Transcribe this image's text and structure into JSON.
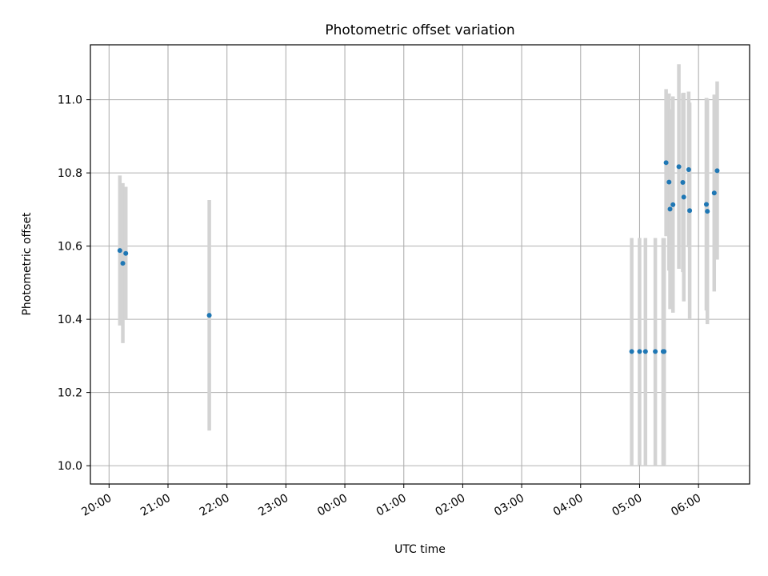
{
  "chart_data": {
    "type": "scatter",
    "title": "Photometric offset variation",
    "xlabel": "UTC time",
    "ylabel": "Photometric offset",
    "x_tick_labels": [
      "20:00",
      "21:00",
      "22:00",
      "23:00",
      "00:00",
      "01:00",
      "02:00",
      "03:00",
      "04:00",
      "05:00",
      "06:00"
    ],
    "y_ticks": [
      10.0,
      10.2,
      10.4,
      10.6,
      10.8,
      11.0
    ],
    "y_tick_labels": [
      "10.0",
      "10.2",
      "10.4",
      "10.6",
      "10.8",
      "11.0"
    ],
    "xlim": [
      "19:41",
      "06:52"
    ],
    "ylim": [
      9.95,
      11.15
    ],
    "grid": true,
    "point_color": "#1f77b4",
    "errorbar_color": "#d3d3d3",
    "series": [
      {
        "points": [
          {
            "x": "20:11",
            "y": 10.588,
            "ylow": 10.383,
            "yhigh": 10.793
          },
          {
            "x": "20:14",
            "y": 10.553,
            "ylow": 10.335,
            "yhigh": 10.772
          },
          {
            "x": "20:17",
            "y": 10.58,
            "ylow": 10.398,
            "yhigh": 10.762
          },
          {
            "x": "21:42",
            "y": 10.411,
            "ylow": 10.096,
            "yhigh": 10.726
          },
          {
            "x": "04:52",
            "y": 10.312,
            "ylow": 10.002,
            "yhigh": 10.622
          },
          {
            "x": "05:00",
            "y": 10.312,
            "ylow": 10.002,
            "yhigh": 10.622
          },
          {
            "x": "05:06",
            "y": 10.312,
            "ylow": 10.002,
            "yhigh": 10.622
          },
          {
            "x": "05:16",
            "y": 10.312,
            "ylow": 10.002,
            "yhigh": 10.622
          },
          {
            "x": "05:24",
            "y": 10.312,
            "ylow": 10.002,
            "yhigh": 10.622
          },
          {
            "x": "05:25",
            "y": 10.312,
            "ylow": 10.002,
            "yhigh": 10.622
          },
          {
            "x": "05:27",
            "y": 10.828,
            "ylow": 10.627,
            "yhigh": 11.029
          },
          {
            "x": "05:30",
            "y": 10.775,
            "ylow": 10.533,
            "yhigh": 11.017
          },
          {
            "x": "05:31",
            "y": 10.701,
            "ylow": 10.428,
            "yhigh": 10.974
          },
          {
            "x": "05:34",
            "y": 10.713,
            "ylow": 10.418,
            "yhigh": 11.009
          },
          {
            "x": "05:40",
            "y": 10.817,
            "ylow": 10.538,
            "yhigh": 11.097
          },
          {
            "x": "05:44",
            "y": 10.774,
            "ylow": 10.529,
            "yhigh": 11.018
          },
          {
            "x": "05:45",
            "y": 10.734,
            "ylow": 10.449,
            "yhigh": 11.019
          },
          {
            "x": "05:50",
            "y": 10.809,
            "ylow": 10.597,
            "yhigh": 11.022
          },
          {
            "x": "05:51",
            "y": 10.697,
            "ylow": 10.402,
            "yhigh": 10.992
          },
          {
            "x": "06:08",
            "y": 10.714,
            "ylow": 10.424,
            "yhigh": 11.005
          },
          {
            "x": "06:09",
            "y": 10.695,
            "ylow": 10.387,
            "yhigh": 11.003
          },
          {
            "x": "06:16",
            "y": 10.745,
            "ylow": 10.476,
            "yhigh": 11.014
          },
          {
            "x": "06:19",
            "y": 10.806,
            "ylow": 10.563,
            "yhigh": 11.05
          }
        ]
      }
    ]
  }
}
